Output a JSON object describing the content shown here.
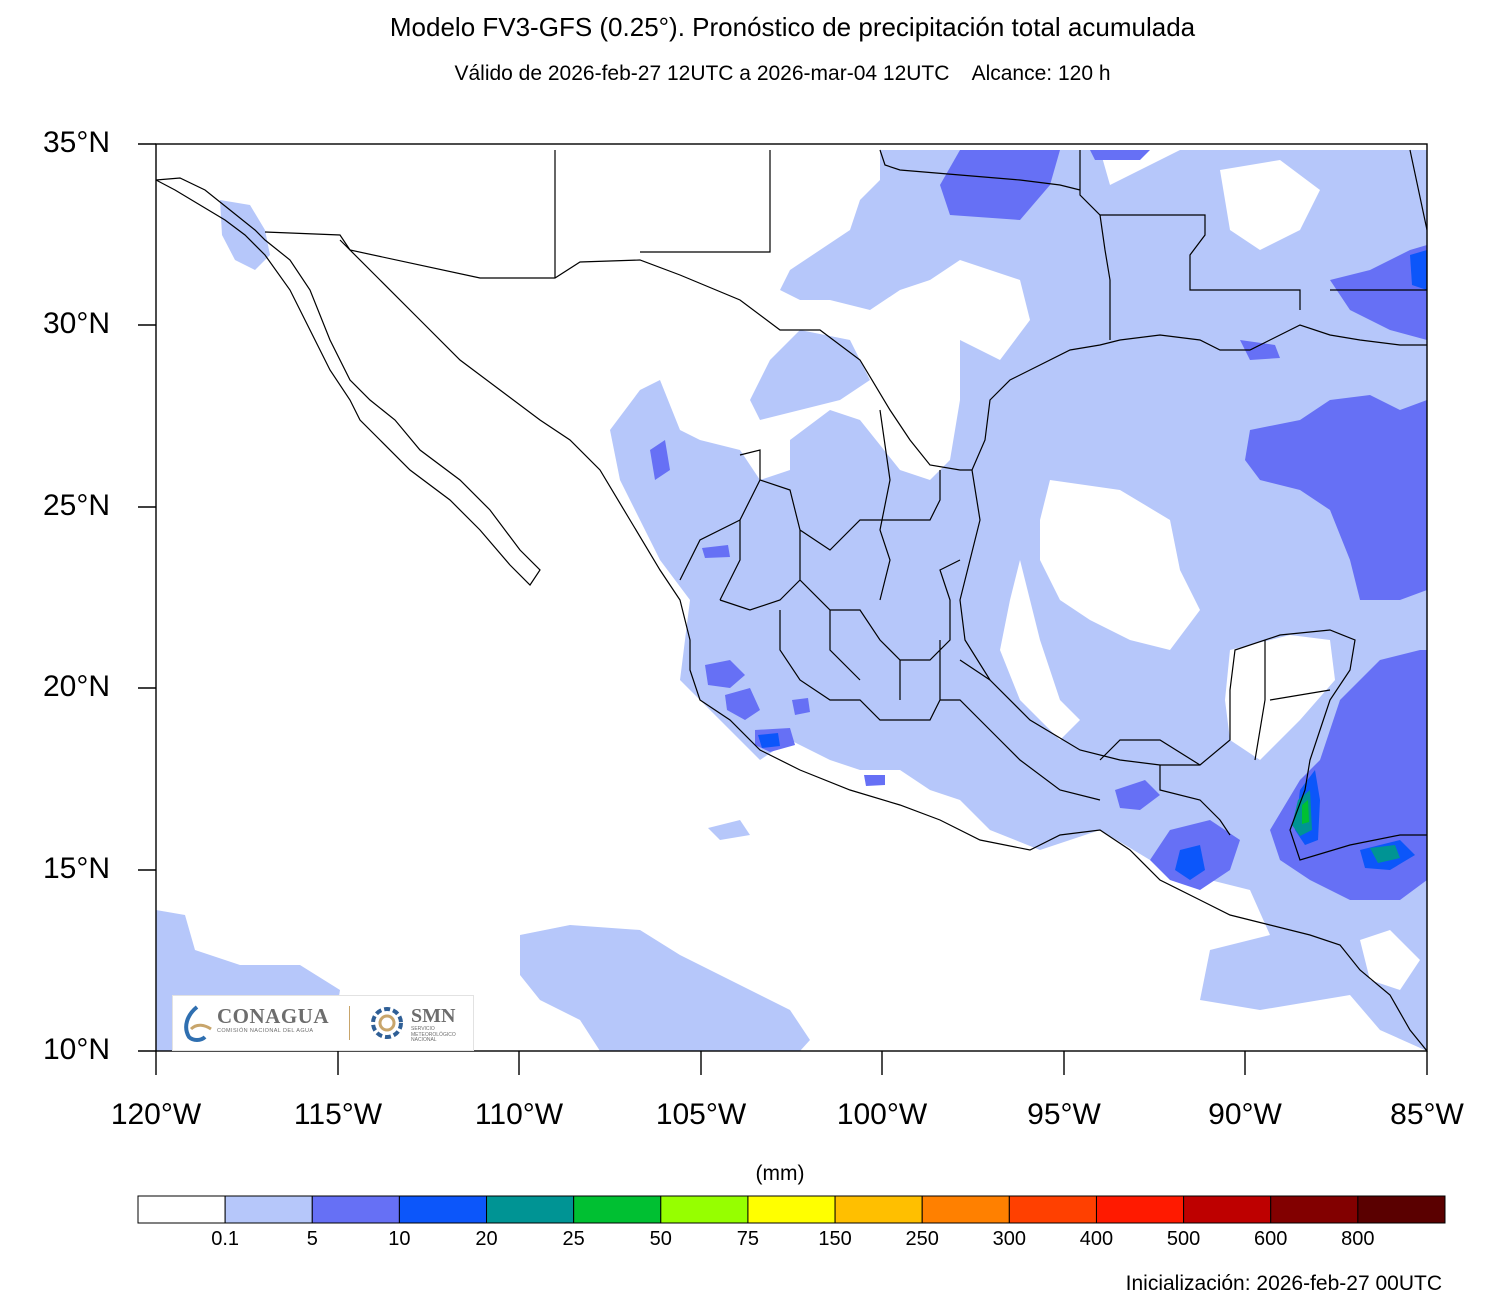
{
  "title": "Modelo FV3-GFS (0.25°). Pronóstico de precipitación total acumulada",
  "subtitle": "Válido de 2026-feb-27 12UTC a 2026-mar-04 12UTC    Alcance: 120 h",
  "map": {
    "lat_labels": [
      "35°N",
      "30°N",
      "25°N",
      "20°N",
      "15°N",
      "10°N"
    ],
    "lon_labels": [
      "120°W",
      "115°W",
      "110°W",
      "105°W",
      "100°W",
      "95°W",
      "90°W",
      "85°W"
    ],
    "lat_range": [
      10,
      35
    ],
    "lon_range": [
      -120,
      -85
    ]
  },
  "colorbar": {
    "units": "(mm)",
    "colors": [
      "#ffffff",
      "#b6c7fa",
      "#6670f5",
      "#0c56fa",
      "#009494",
      "#00c032",
      "#96ff00",
      "#ffff00",
      "#ffbf00",
      "#ff8000",
      "#ff4000",
      "#ff1a00",
      "#be0000",
      "#820000",
      "#5a0000"
    ],
    "labels": [
      "0.1",
      "5",
      "10",
      "20",
      "25",
      "50",
      "75",
      "150",
      "250",
      "300",
      "400",
      "500",
      "600",
      "800"
    ]
  },
  "init": "Inicialización: 2026-feb-27 00UTC",
  "logos": {
    "conagua": "CONAGUA",
    "conagua_sub": "COMISIÓN NACIONAL DEL AGUA",
    "smn": "SMN",
    "smn_sub": "SERVICIO METEOROLÓGICO NACIONAL"
  }
}
